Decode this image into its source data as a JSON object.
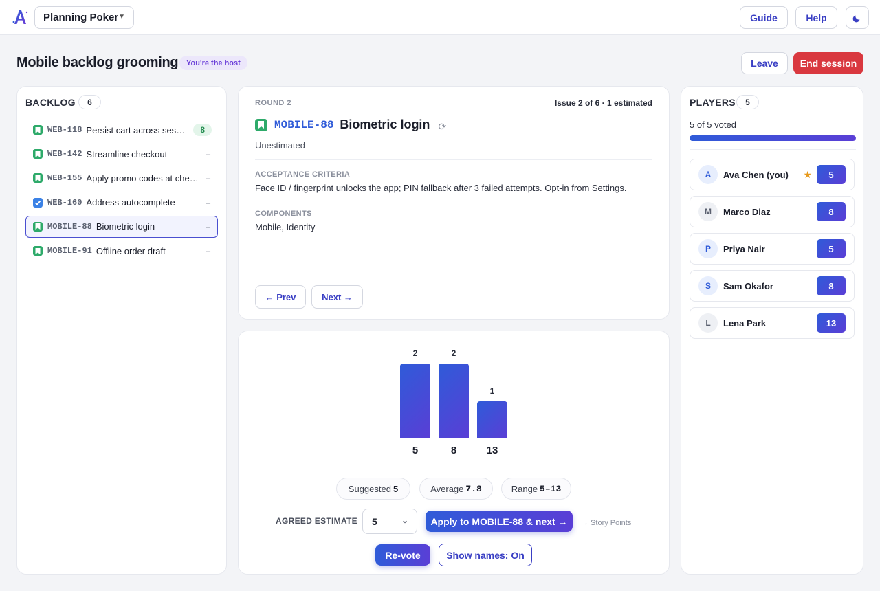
{
  "topbar": {
    "app_name": "Planning Poker",
    "guide_label": "Guide",
    "help_label": "Help",
    "theme_icon": "moon-icon"
  },
  "session": {
    "title": "Mobile backlog grooming",
    "host_badge": "You're the host",
    "leave_label": "Leave",
    "end_label": "End session"
  },
  "backlog": {
    "heading": "BACKLOG",
    "count": "6",
    "items": [
      {
        "key": "WEB-118",
        "summary": "Persist cart across sessions",
        "estimate": "8",
        "type": "story"
      },
      {
        "key": "WEB-142",
        "summary": "Streamline checkout",
        "estimate": "–",
        "type": "story"
      },
      {
        "key": "WEB-155",
        "summary": "Apply promo codes at checkout",
        "estimate": "–",
        "type": "story"
      },
      {
        "key": "WEB-160",
        "summary": "Address autocomplete",
        "estimate": "–",
        "type": "task"
      },
      {
        "key": "MOBILE-88",
        "summary": "Biometric login",
        "estimate": "–",
        "type": "story"
      },
      {
        "key": "MOBILE-91",
        "summary": "Offline order draft",
        "estimate": "–",
        "type": "story"
      }
    ]
  },
  "issue": {
    "round": "ROUND 2",
    "meta": "Issue 2 of 6 · 1 estimated",
    "key": "MOBILE-88",
    "title": "Biometric login",
    "status": "Unestimated",
    "acceptance_label": "ACCEPTANCE CRITERIA",
    "acceptance_text": "Face ID / fingerprint unlocks the app; PIN fallback after 3 failed attempts. Opt-in from Settings.",
    "components_label": "COMPONENTS",
    "components_text": "Mobile, Identity",
    "prev_label": "← Prev",
    "next_label": "Next →"
  },
  "chart_data": {
    "type": "bar",
    "categories": [
      "5",
      "8",
      "13"
    ],
    "values": [
      2,
      2,
      1
    ],
    "title": "",
    "xlabel": "",
    "ylabel": ""
  },
  "votes": {
    "suggested_label": "Suggested",
    "suggested_value": "5",
    "average_label": "Average",
    "average_value": "7.8",
    "range_label": "Range",
    "range_value": "5–13",
    "agreed_label": "AGREED ESTIMATE",
    "agreed_value": "5",
    "apply_label": "Apply to MOBILE-88 & next →",
    "hint": "→ Story Points",
    "revote_label": "Re-vote",
    "names_label": "Show names: On"
  },
  "players": {
    "heading": "PLAYERS",
    "count": "5",
    "voted_text": "5 of 5 voted",
    "voted_fraction": 1.0,
    "list": [
      {
        "initial": "A",
        "name": "Ava Chen (you)",
        "vote": "5",
        "host": true,
        "avatar": "blue"
      },
      {
        "initial": "M",
        "name": "Marco Diaz",
        "vote": "8",
        "host": false,
        "avatar": "gray"
      },
      {
        "initial": "P",
        "name": "Priya Nair",
        "vote": "5",
        "host": false,
        "avatar": "blue"
      },
      {
        "initial": "S",
        "name": "Sam Okafor",
        "vote": "8",
        "host": false,
        "avatar": "blue"
      },
      {
        "initial": "L",
        "name": "Lena Park",
        "vote": "13",
        "host": false,
        "avatar": "gray"
      }
    ]
  },
  "colors": {
    "accent": "#3a3fc4",
    "danger": "#d9383f",
    "story": "#2eaa6a",
    "task": "#3b82e6"
  }
}
